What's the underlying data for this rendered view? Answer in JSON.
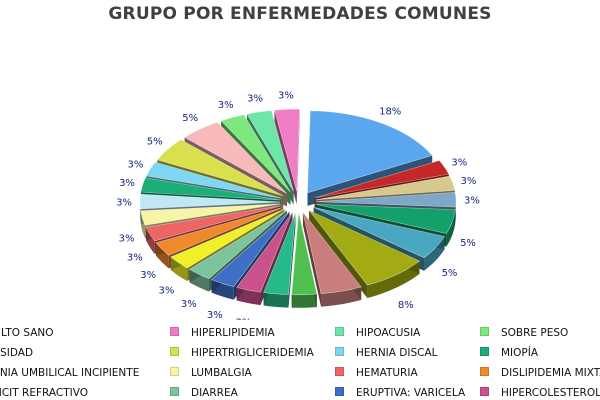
{
  "chart_data": {
    "type": "pie",
    "title": "GRUPO POR ENFERMEDADES COMUNES",
    "label_color": "#1a237e",
    "slices": [
      {
        "name": "ADULTO SANO",
        "value": 18,
        "label": "18%",
        "color": "#5aa6ef"
      },
      {
        "name": "",
        "value": 3,
        "label": "3%",
        "color": "#c62828"
      },
      {
        "name": "",
        "value": 3,
        "label": "3%",
        "color": "#d7c88c"
      },
      {
        "name": "",
        "value": 3,
        "label": "3%",
        "color": "#7ea7c9"
      },
      {
        "name": "",
        "value": 5,
        "label": "5%",
        "color": "#13a06a"
      },
      {
        "name": "",
        "value": 5,
        "label": "5%",
        "color": "#4aa7c2"
      },
      {
        "name": "",
        "value": 8,
        "label": "8%",
        "color": "#a2ab12"
      },
      {
        "name": "",
        "value": 5,
        "label": "5%",
        "color": "#c97d7d"
      },
      {
        "name": "",
        "value": 3,
        "label": "3%",
        "color": "#4fc04f"
      },
      {
        "name": "",
        "value": 3,
        "label": "3%",
        "color": "#26b98a"
      },
      {
        "name": "",
        "value": 3,
        "label": "3%",
        "color": "#c9528d"
      },
      {
        "name": "",
        "value": 3,
        "label": "3%",
        "color": "#3d70c4"
      },
      {
        "name": "",
        "value": 3,
        "label": "3%",
        "color": "#7cc49b"
      },
      {
        "name": "",
        "value": 3,
        "label": "3%",
        "color": "#f0f02a"
      },
      {
        "name": "",
        "value": 3,
        "label": "3%",
        "color": "#f0882c"
      },
      {
        "name": "",
        "value": 3,
        "label": "3%",
        "color": "#ee6565"
      },
      {
        "name": "",
        "value": 3,
        "label": "3%",
        "color": "#f7f4a8"
      },
      {
        "name": "",
        "value": 3,
        "label": "3%",
        "color": "#bfe8f5"
      },
      {
        "name": "",
        "value": 3,
        "label": "3%",
        "color": "#1cae78"
      },
      {
        "name": "",
        "value": 3,
        "label": "3%",
        "color": "#7fd6f2"
      },
      {
        "name": "",
        "value": 5,
        "label": "5%",
        "color": "#d8e04d"
      },
      {
        "name": "",
        "value": 5,
        "label": "5%",
        "color": "#f7b9b9"
      },
      {
        "name": "",
        "value": 3,
        "label": "3%",
        "color": "#7de87d"
      },
      {
        "name": "",
        "value": 3,
        "label": "3%",
        "color": "#6ee6a8"
      },
      {
        "name": "",
        "value": 3,
        "label": "3%",
        "color": "#f07cc3"
      }
    ],
    "legend": [
      {
        "label": "ADULTO SANO",
        "color": "#5aa6ef"
      },
      {
        "label": "HIPERLIPIDEMIA",
        "color": "#f07cc3"
      },
      {
        "label": "HIPOACUSIA",
        "color": "#6ee6a8"
      },
      {
        "label": "SOBRE PESO",
        "color": "#7de87d"
      },
      {
        "label": "OBESIDAD",
        "color": "#f7b9b9"
      },
      {
        "label": "HIPERTRIGLICERIDEMIA",
        "color": "#d8e04d"
      },
      {
        "label": "HERNIA DISCAL",
        "color": "#7fd6f2"
      },
      {
        "label": "MIOPÍA",
        "color": "#1cae78"
      },
      {
        "label": "HERNIA UMBILICAL INCIPIENTE",
        "color": "#f7f4a8"
      },
      {
        "label": "LUMBALGIA",
        "color": "#f7f4a8"
      },
      {
        "label": "HEMATURIA",
        "color": "#ee6565"
      },
      {
        "label": "DISLIPIDEMIA MIXTA",
        "color": "#f0882c"
      },
      {
        "label": "DEFICIT REFRACTIVO",
        "color": "#f0f02a"
      },
      {
        "label": "DIARREA",
        "color": "#7cc49b"
      },
      {
        "label": "ERUPTIVA: VARICELA",
        "color": "#3d70c4"
      },
      {
        "label": "HIPERCOLESTEROLEMIA",
        "color": "#c9528d"
      }
    ]
  }
}
